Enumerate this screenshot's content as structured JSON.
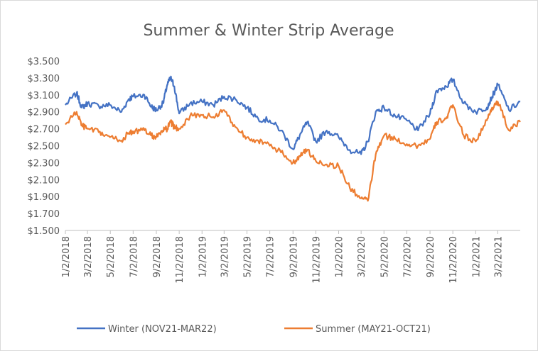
{
  "chart_data": {
    "type": "line",
    "title": "Summer & Winter Strip Average",
    "xlabel": "",
    "ylabel": "",
    "ylim": [
      1.5,
      3.5
    ],
    "y_ticks": [
      "$1.500",
      "$1.700",
      "$1.900",
      "$2.100",
      "$2.300",
      "$2.500",
      "$2.700",
      "$2.900",
      "$3.100",
      "$3.300",
      "$3.500"
    ],
    "x_ticks": [
      "1/2/2018",
      "3/2/2018",
      "5/2/2018",
      "7/2/2018",
      "9/2/2018",
      "11/2/2018",
      "1/2/2019",
      "3/2/2019",
      "5/2/2019",
      "7/2/2019",
      "9/2/2019",
      "11/2/2019",
      "1/2/2020",
      "3/2/2020",
      "5/2/2020",
      "7/2/2020",
      "9/2/2020",
      "11/2/2020",
      "1/2/2021",
      "3/2/2021"
    ],
    "grid": false,
    "legend": "bottom",
    "series": [
      {
        "name": "Winter (NOV21-MAR22)",
        "color": "#4472C4",
        "x": [
          "2018-01-02",
          "2018-02-01",
          "2018-02-15",
          "2018-03-02",
          "2018-04-01",
          "2018-05-01",
          "2018-06-01",
          "2018-06-20",
          "2018-07-02",
          "2018-08-01",
          "2018-08-20",
          "2018-09-02",
          "2018-09-20",
          "2018-10-01",
          "2018-10-10",
          "2018-10-20",
          "2018-11-02",
          "2018-12-01",
          "2019-01-02",
          "2019-02-01",
          "2019-03-02",
          "2019-04-01",
          "2019-05-02",
          "2019-06-01",
          "2019-07-02",
          "2019-08-01",
          "2019-09-02",
          "2019-09-20",
          "2019-10-10",
          "2019-11-02",
          "2019-12-01",
          "2020-01-02",
          "2020-02-01",
          "2020-03-02",
          "2020-03-20",
          "2020-04-10",
          "2020-05-02",
          "2020-06-01",
          "2020-07-02",
          "2020-08-01",
          "2020-09-02",
          "2020-09-20",
          "2020-10-15",
          "2020-11-02",
          "2020-12-01",
          "2021-01-02",
          "2021-02-01",
          "2021-02-15",
          "2021-03-02",
          "2021-04-01",
          "2021-05-01"
        ],
        "y": [
          2.98,
          3.12,
          2.95,
          3.0,
          2.97,
          2.98,
          2.9,
          3.05,
          3.08,
          3.1,
          2.96,
          2.92,
          3.0,
          3.22,
          3.3,
          3.2,
          2.88,
          3.0,
          3.02,
          2.98,
          3.08,
          3.05,
          2.95,
          2.82,
          2.8,
          2.68,
          2.46,
          2.62,
          2.78,
          2.55,
          2.68,
          2.6,
          2.45,
          2.4,
          2.55,
          2.9,
          2.95,
          2.85,
          2.8,
          2.68,
          2.88,
          3.15,
          3.2,
          3.28,
          3.0,
          2.9,
          2.95,
          3.08,
          3.22,
          2.92,
          3.02
        ]
      },
      {
        "name": "Summer  (MAY21-OCT21)",
        "color": "#ED7D31",
        "x": [
          "2018-01-02",
          "2018-02-01",
          "2018-02-15",
          "2018-03-02",
          "2018-04-01",
          "2018-05-01",
          "2018-06-01",
          "2018-06-20",
          "2018-07-02",
          "2018-08-01",
          "2018-08-20",
          "2018-09-02",
          "2018-09-20",
          "2018-10-01",
          "2018-10-10",
          "2018-10-20",
          "2018-11-02",
          "2018-12-01",
          "2019-01-02",
          "2019-02-01",
          "2019-03-02",
          "2019-04-01",
          "2019-05-02",
          "2019-06-01",
          "2019-07-02",
          "2019-08-01",
          "2019-09-02",
          "2019-09-20",
          "2019-10-10",
          "2019-11-02",
          "2019-12-01",
          "2020-01-02",
          "2020-02-01",
          "2020-03-02",
          "2020-03-20",
          "2020-04-10",
          "2020-05-02",
          "2020-06-01",
          "2020-07-02",
          "2020-08-01",
          "2020-09-02",
          "2020-09-20",
          "2020-10-15",
          "2020-11-02",
          "2020-12-01",
          "2021-01-02",
          "2021-02-01",
          "2021-02-15",
          "2021-03-02",
          "2021-04-01",
          "2021-05-01"
        ],
        "y": [
          2.75,
          2.9,
          2.74,
          2.7,
          2.66,
          2.6,
          2.56,
          2.65,
          2.67,
          2.68,
          2.62,
          2.6,
          2.68,
          2.7,
          2.78,
          2.72,
          2.7,
          2.85,
          2.86,
          2.84,
          2.92,
          2.72,
          2.6,
          2.56,
          2.5,
          2.42,
          2.3,
          2.38,
          2.45,
          2.32,
          2.28,
          2.26,
          2.0,
          1.88,
          1.85,
          2.4,
          2.62,
          2.58,
          2.52,
          2.5,
          2.58,
          2.78,
          2.82,
          2.98,
          2.62,
          2.55,
          2.8,
          2.95,
          3.02,
          2.68,
          2.78
        ]
      }
    ]
  }
}
